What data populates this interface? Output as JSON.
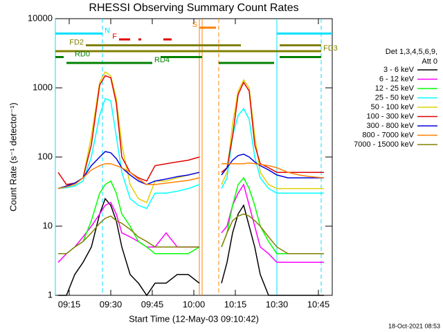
{
  "chart_data": {
    "type": "line",
    "title": "RHESSI Observing Summary Count Rates",
    "xlabel": "Start Time (12-May-03 09:10:42)",
    "ylabel": "Count Rate (s⁻¹ detector⁻¹)",
    "stamp": "18-Oct-2021 08:53",
    "legend_title": [
      "Det 1,3,4,5,6,9,",
      "Att 0"
    ],
    "log_y": true,
    "xlim": [
      "09:10",
      "10:50"
    ],
    "xticks": [
      "09:15",
      "09:30",
      "09:45",
      "10:00",
      "10:15",
      "10:30",
      "10:45"
    ],
    "ylim": [
      1,
      10000
    ],
    "yticks": [
      1,
      10,
      100,
      1000,
      10000
    ],
    "x": [
      "09:11",
      "09:14",
      "09:17",
      "09:20",
      "09:23",
      "09:26",
      "09:28",
      "09:30",
      "09:32",
      "09:34",
      "09:37",
      "09:40",
      "09:43",
      "09:46",
      "09:50",
      "09:54",
      "09:58",
      "10:02",
      "10:05",
      "10:10",
      "10:12",
      "10:14",
      "10:16",
      "10:18",
      "10:20",
      "10:22",
      "10:24",
      "10:27",
      "10:30",
      "10:34",
      "10:38",
      "10:42",
      "10:47"
    ],
    "series": [
      {
        "name": "3 - 6 keV",
        "color": "#000000",
        "values": [
          1,
          1,
          2,
          3,
          5,
          15,
          25,
          20,
          12,
          5,
          2,
          1.5,
          1,
          1.5,
          1.5,
          2,
          2,
          1.5,
          null,
          1.5,
          3,
          8,
          15,
          20,
          10,
          5,
          2,
          1,
          1,
          1,
          1,
          1,
          1
        ]
      },
      {
        "name": "6 - 12 keV",
        "color": "#ff00ff",
        "values": [
          3,
          4,
          5,
          7,
          10,
          15,
          20,
          22,
          15,
          8,
          7,
          6,
          5,
          5,
          8,
          5,
          5,
          5,
          null,
          8,
          10,
          20,
          30,
          40,
          20,
          10,
          5,
          4,
          3,
          3,
          3,
          3,
          3
        ]
      },
      {
        "name": "12 - 25 keV",
        "color": "#00ff00",
        "values": [
          4,
          4,
          5,
          6,
          12,
          30,
          40,
          45,
          30,
          15,
          10,
          6,
          5,
          4,
          4,
          4,
          4,
          5,
          null,
          5,
          8,
          20,
          40,
          50,
          35,
          20,
          10,
          6,
          4,
          4,
          4,
          4,
          4
        ]
      },
      {
        "name": "25 - 50 keV",
        "color": "#00ffff",
        "values": [
          35,
          36,
          38,
          45,
          100,
          400,
          700,
          650,
          200,
          60,
          25,
          20,
          18,
          30,
          30,
          32,
          35,
          40,
          null,
          35,
          50,
          200,
          400,
          500,
          350,
          100,
          50,
          35,
          30,
          30,
          30,
          30,
          30
        ]
      },
      {
        "name": "50 - 100 keV",
        "color": "#e0d000",
        "values": [
          35,
          38,
          40,
          50,
          200,
          1200,
          1700,
          1500,
          700,
          150,
          40,
          25,
          22,
          45,
          45,
          50,
          55,
          60,
          null,
          40,
          60,
          300,
          900,
          1300,
          1000,
          200,
          60,
          40,
          35,
          35,
          35,
          35,
          35
        ]
      },
      {
        "name": "100 - 300 keV",
        "color": "#e00000",
        "values": [
          60,
          40,
          42,
          50,
          150,
          1100,
          1500,
          1400,
          600,
          100,
          60,
          50,
          45,
          75,
          80,
          85,
          90,
          100,
          null,
          60,
          70,
          200,
          800,
          1200,
          900,
          150,
          80,
          70,
          60,
          60,
          60,
          60,
          60
        ]
      },
      {
        "name": "300 - 800 keV",
        "color": "#0000e0",
        "values": [
          35,
          38,
          42,
          50,
          75,
          100,
          120,
          115,
          95,
          70,
          55,
          45,
          40,
          45,
          48,
          52,
          55,
          60,
          null,
          55,
          70,
          90,
          105,
          110,
          100,
          85,
          75,
          65,
          55,
          50,
          50,
          50,
          50
        ]
      },
      {
        "name": "800 - 7000 keV",
        "color": "#ff8000",
        "values": [
          35,
          37,
          40,
          50,
          65,
          75,
          80,
          80,
          75,
          70,
          60,
          48,
          40,
          40,
          42,
          44,
          46,
          50,
          null,
          80,
          80,
          80,
          80,
          80,
          82,
          80,
          78,
          75,
          70,
          60,
          55,
          52,
          50
        ]
      },
      {
        "name": "7000 - 15000 keV",
        "color": "#808000",
        "values": [
          4,
          4,
          5,
          6,
          8,
          11,
          13,
          14,
          12,
          11,
          9,
          7,
          6,
          5,
          5,
          5,
          5,
          5,
          null,
          5,
          8,
          12,
          14,
          15,
          14,
          12,
          10,
          7,
          5,
          4,
          4,
          4,
          4
        ]
      }
    ],
    "flags": [
      {
        "label": "S",
        "color": "#ff8000",
        "segments": [
          [
            "10:02",
            "10:08"
          ]
        ]
      },
      {
        "label": "N",
        "color": "#00e0ff",
        "segments": [
          [
            "09:10",
            "09:27"
          ],
          [
            "10:30",
            "10:50"
          ]
        ]
      },
      {
        "label": "F",
        "color": "#e00000",
        "segments": [
          [
            "09:33",
            "09:37"
          ],
          [
            "09:40",
            "09:41"
          ],
          [
            "09:49",
            "09:52"
          ]
        ]
      },
      {
        "label": "FD2",
        "color": "#808000",
        "segments": [
          [
            "09:21",
            "10:17"
          ],
          [
            "10:31",
            "10:46"
          ]
        ]
      },
      {
        "label": "FD3",
        "color": "#808000",
        "segments": [
          [
            "09:10",
            "10:46"
          ]
        ]
      },
      {
        "label": "RD0",
        "color": "#008000",
        "segments": [
          [
            "09:10",
            "09:13"
          ],
          [
            "09:48",
            "10:03"
          ],
          [
            "10:31",
            "10:46"
          ]
        ]
      },
      {
        "label": "RD4",
        "color": "#008000",
        "segments": [
          [
            "09:14",
            "09:45"
          ],
          [
            "10:09",
            "10:29"
          ]
        ]
      }
    ],
    "vlines": [
      {
        "x": "09:10",
        "color": "#00e0ff",
        "dashed": false
      },
      {
        "x": "09:27",
        "color": "#00e0ff",
        "dashed": true
      },
      {
        "x": "10:30",
        "color": "#00e0ff",
        "dashed": false
      },
      {
        "x": "10:46",
        "color": "#00e0ff",
        "dashed": true
      },
      {
        "x": "10:02",
        "color": "#ff8000",
        "dashed": false
      },
      {
        "x": "10:03",
        "color": "#ff8000",
        "dashed": false
      },
      {
        "x": "10:09",
        "color": "#ff8000",
        "dashed": true
      }
    ]
  }
}
